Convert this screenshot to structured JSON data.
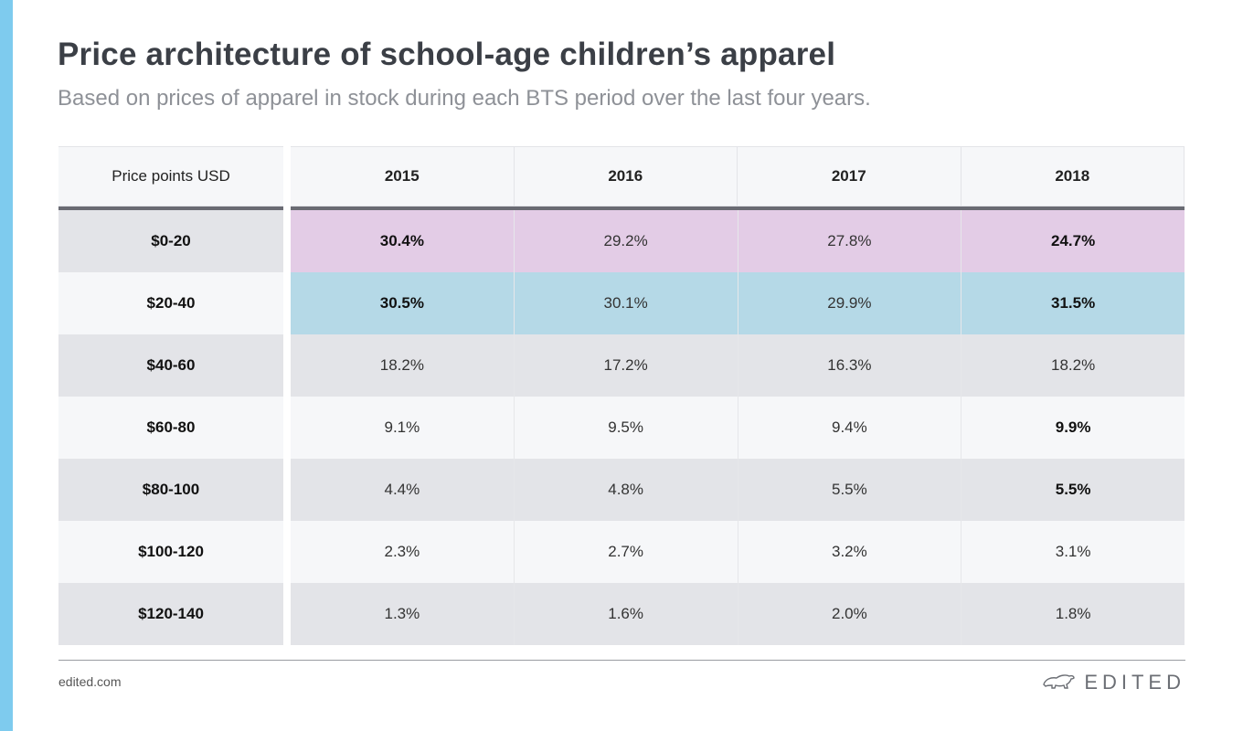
{
  "colors": {
    "accent_bar": "#7ecbee",
    "highlight_row_1": "#e3cce6",
    "highlight_row_2": "#b5d9e7",
    "row_dark": "#e3e4e8",
    "row_light": "#f6f7f9"
  },
  "title": "Price architecture of school-age children’s apparel",
  "subtitle": "Based on prices of apparel in stock during each BTS period over the last four years.",
  "footer": {
    "url": "edited.com",
    "brand": "EDITED",
    "brand_icon": "polar-bear-icon"
  },
  "chart_data": {
    "type": "table",
    "title": "Price architecture of school-age children’s apparel",
    "row_header_label": "Price points USD",
    "columns": [
      "2015",
      "2016",
      "2017",
      "2018"
    ],
    "rows": [
      {
        "label": "$0-20",
        "values": [
          "30.4%",
          "29.2%",
          "27.8%",
          "24.7%"
        ],
        "bold": [
          true,
          false,
          false,
          true
        ],
        "highlight": "pink"
      },
      {
        "label": "$20-40",
        "values": [
          "30.5%",
          "30.1%",
          "29.9%",
          "31.5%"
        ],
        "bold": [
          true,
          false,
          false,
          true
        ],
        "highlight": "blue"
      },
      {
        "label": "$40-60",
        "values": [
          "18.2%",
          "17.2%",
          "16.3%",
          "18.2%"
        ],
        "bold": [
          false,
          false,
          false,
          false
        ],
        "highlight": "dark"
      },
      {
        "label": "$60-80",
        "values": [
          "9.1%",
          "9.5%",
          "9.4%",
          "9.9%"
        ],
        "bold": [
          false,
          false,
          false,
          true
        ],
        "highlight": "light"
      },
      {
        "label": "$80-100",
        "values": [
          "4.4%",
          "4.8%",
          "5.5%",
          "5.5%"
        ],
        "bold": [
          false,
          false,
          false,
          true
        ],
        "highlight": "dark"
      },
      {
        "label": "$100-120",
        "values": [
          "2.3%",
          "2.7%",
          "3.2%",
          "3.1%"
        ],
        "bold": [
          false,
          false,
          false,
          false
        ],
        "highlight": "light"
      },
      {
        "label": "$120-140",
        "values": [
          "1.3%",
          "1.6%",
          "2.0%",
          "1.8%"
        ],
        "bold": [
          false,
          false,
          false,
          false
        ],
        "highlight": "dark"
      }
    ]
  }
}
